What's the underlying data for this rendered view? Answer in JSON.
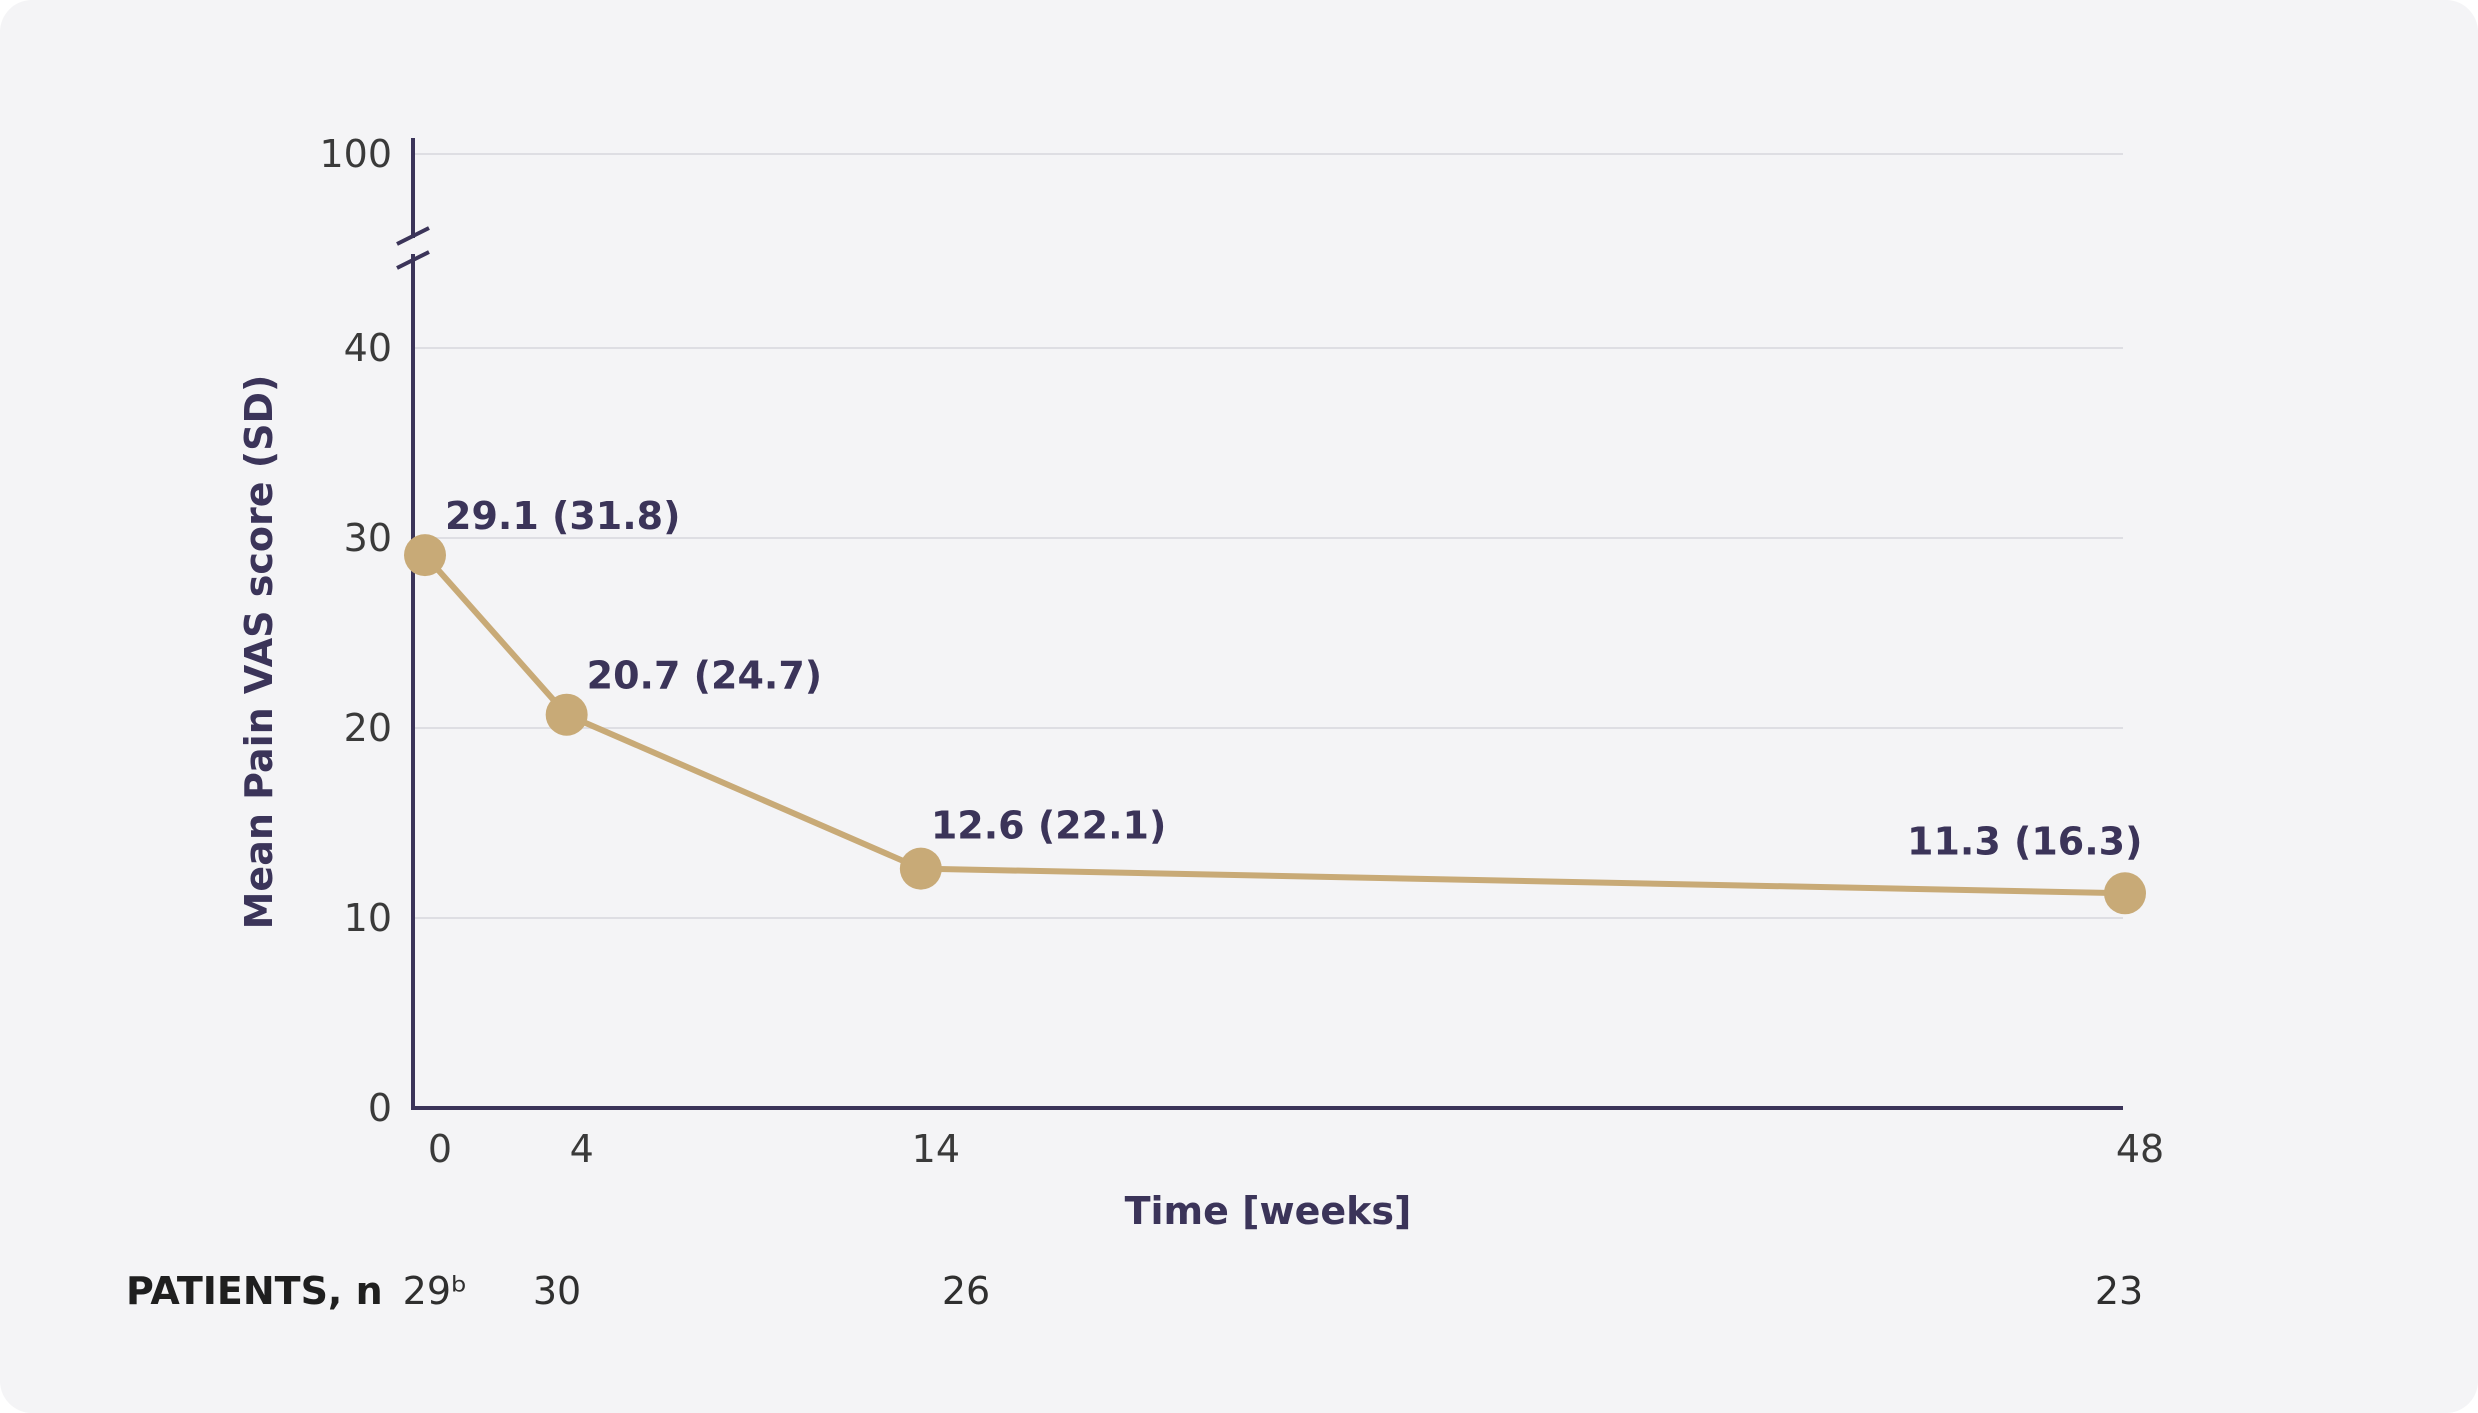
{
  "colors": {
    "background": "#f4f4f6",
    "axis": "#3b3459",
    "grid": "#dedee3",
    "series": "#c8aa77",
    "label": "#3b3459"
  },
  "chart_data": {
    "type": "line",
    "xlabel": "Time [weeks]",
    "ylabel": "Mean Pain VAS score (SD)",
    "x": [
      0,
      4,
      14,
      48
    ],
    "x_ticks": [
      "0",
      "4",
      "14",
      "48"
    ],
    "y_ticks": [
      "0",
      "10",
      "20",
      "30",
      "40",
      "100"
    ],
    "ylim": [
      0,
      100
    ],
    "y_axis_break": [
      40,
      100
    ],
    "grid": true,
    "series": [
      {
        "values": [
          29.1,
          20.7,
          12.6,
          11.3
        ],
        "sd": [
          31.8,
          24.7,
          22.1,
          16.3
        ],
        "labels": [
          "29.1 (31.8)",
          "20.7 (24.7)",
          "12.6 (22.1)",
          "11.3 (16.3)"
        ]
      }
    ],
    "patients": {
      "title": "PATIENTS, n",
      "values": [
        "29ᵇ",
        "30",
        "26",
        "23"
      ]
    }
  }
}
